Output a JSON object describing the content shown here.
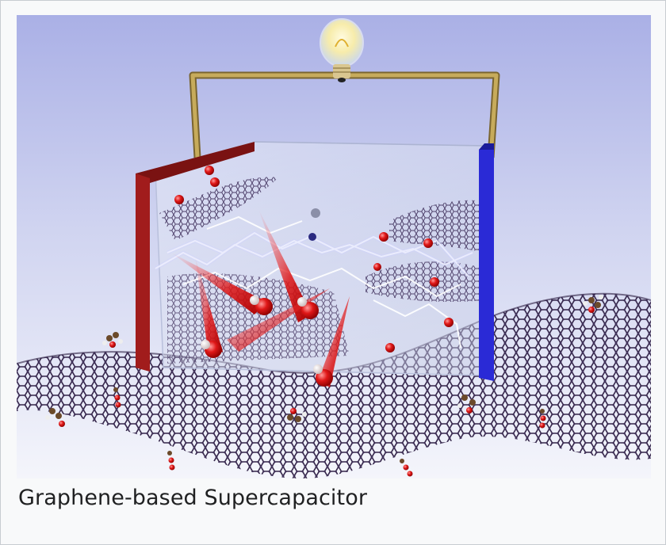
{
  "figure": {
    "image_alt_subject": "supercapacitor-illustration",
    "caption": "Graphene-based Supercapacitor"
  },
  "colors": {
    "background": "#f8f9fa",
    "border": "#c8ccd1",
    "positive_electrode": "#9b1c1c",
    "negative_electrode": "#2222cc",
    "wire": "#b89a4a",
    "graphene": "#2a1a40",
    "ion_red": "#cc1111"
  }
}
